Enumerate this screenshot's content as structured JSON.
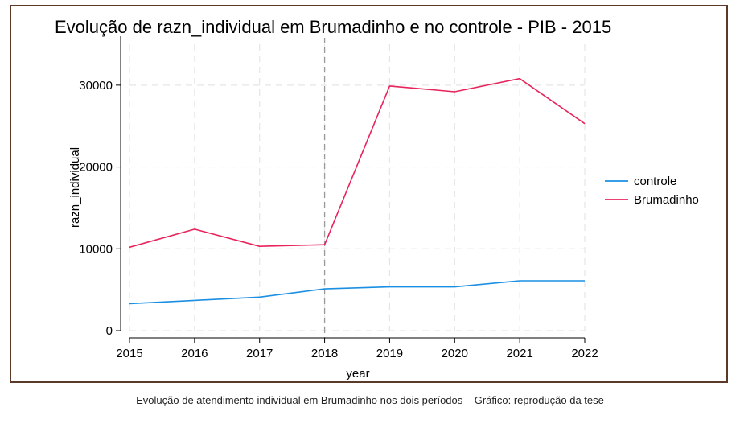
{
  "chart_data": {
    "type": "line",
    "title": "Evolução de razn_individual em Brumadinho e no controle - PIB - 2015",
    "xlabel": "year",
    "ylabel": "razn_individual",
    "x": [
      2015,
      2016,
      2017,
      2018,
      2019,
      2020,
      2021,
      2022
    ],
    "xlim": [
      2015,
      2022
    ],
    "ylim": [
      0,
      35000
    ],
    "yticks": [
      0,
      10000,
      20000,
      30000
    ],
    "grid": true,
    "vline": {
      "x": 2018,
      "style": "dashed"
    },
    "legend_position": "right",
    "series": [
      {
        "name": "controle",
        "color": "#1a8fe3",
        "values": [
          3300,
          3700,
          4100,
          5100,
          5350,
          5350,
          6100,
          6100
        ]
      },
      {
        "name": "Brumadinho",
        "color": "#e8245c",
        "values": [
          10200,
          12400,
          10300,
          10500,
          29900,
          29200,
          30800,
          25300
        ]
      }
    ]
  },
  "caption": "Evolução de atendimento individual em Brumadinho nos dois períodos – Gráfico: reprodução da tese"
}
